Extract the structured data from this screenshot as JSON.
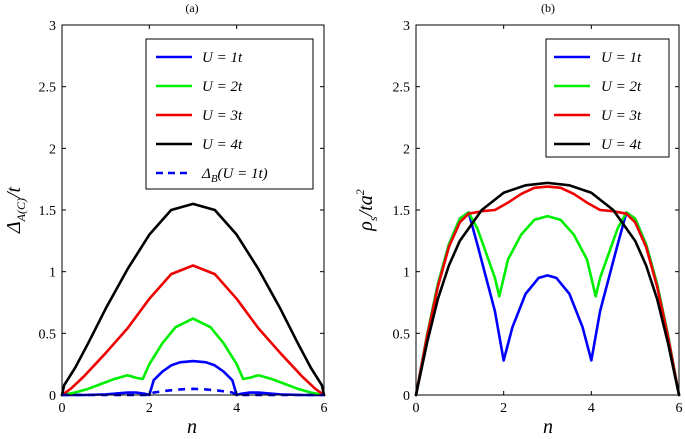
{
  "figure": {
    "panels": [
      "(a)",
      "(b)"
    ]
  },
  "chart_data": [
    {
      "type": "line",
      "panel_label": "(a)",
      "title": "",
      "xlabel": "n",
      "ylabel": "Δ_A(C)/t",
      "xlim": [
        0,
        6
      ],
      "ylim": [
        0,
        3
      ],
      "xticks": [
        0,
        2,
        4,
        6
      ],
      "xtick_labels": [
        "0",
        "2",
        "4",
        "6"
      ],
      "yticks": [
        0,
        0.5,
        1,
        1.5,
        2,
        2.5,
        3
      ],
      "ytick_labels": [
        "0",
        "0.5",
        "1",
        "1.5",
        "2",
        "2.5",
        "3"
      ],
      "legend_position": "top-right",
      "series": [
        {
          "name": "U = 1t",
          "color": "#0000ff",
          "dash": "solid",
          "x": [
            0,
            0.5,
            1,
            1.5,
            1.7,
            1.9,
            2.0,
            2.1,
            2.3,
            2.5,
            2.7,
            3.0,
            3.3,
            3.5,
            3.7,
            3.9,
            4.0,
            4.1,
            4.3,
            4.5,
            5,
            5.5,
            6
          ],
          "y": [
            0,
            0,
            0.005,
            0.02,
            0.02,
            0.01,
            0.0,
            0.12,
            0.19,
            0.24,
            0.265,
            0.275,
            0.265,
            0.24,
            0.19,
            0.12,
            0.0,
            0.01,
            0.02,
            0.02,
            0.005,
            0,
            0
          ]
        },
        {
          "name": "U = 2t",
          "color": "#00ee00",
          "dash": "solid",
          "x": [
            0,
            0.3,
            0.6,
            0.9,
            1.2,
            1.5,
            1.7,
            1.85,
            2.0,
            2.3,
            2.6,
            3.0,
            3.4,
            3.7,
            4.0,
            4.15,
            4.3,
            4.5,
            4.8,
            5.1,
            5.4,
            5.7,
            6
          ],
          "y": [
            0,
            0.02,
            0.05,
            0.09,
            0.13,
            0.16,
            0.14,
            0.13,
            0.25,
            0.42,
            0.55,
            0.62,
            0.55,
            0.42,
            0.25,
            0.13,
            0.14,
            0.16,
            0.13,
            0.09,
            0.05,
            0.02,
            0
          ]
        },
        {
          "name": "U = 3t",
          "color": "#ee0000",
          "dash": "solid",
          "x": [
            0,
            0.2,
            0.5,
            1.0,
            1.5,
            2.0,
            2.5,
            3.0,
            3.5,
            4.0,
            4.5,
            5.0,
            5.5,
            5.8,
            6
          ],
          "y": [
            0,
            0.05,
            0.15,
            0.34,
            0.54,
            0.78,
            0.98,
            1.05,
            0.98,
            0.78,
            0.54,
            0.34,
            0.15,
            0.05,
            0
          ]
        },
        {
          "name": "U = 4t",
          "color": "#000000",
          "dash": "solid",
          "x": [
            0,
            0.05,
            0.3,
            0.6,
            1.0,
            1.5,
            2.0,
            2.5,
            3.0,
            3.5,
            4.0,
            4.5,
            5.0,
            5.4,
            5.7,
            5.95,
            6
          ],
          "y": [
            0,
            0.08,
            0.22,
            0.42,
            0.7,
            1.02,
            1.3,
            1.5,
            1.55,
            1.5,
            1.3,
            1.02,
            0.7,
            0.42,
            0.22,
            0.08,
            0
          ]
        },
        {
          "name": "Δ_B(U = 1t)",
          "color": "#0000ff",
          "dash": "dashed",
          "x": [
            0,
            1.9,
            2.0,
            2.1,
            2.4,
            2.7,
            3.0,
            3.3,
            3.6,
            3.9,
            4.0,
            4.1,
            6
          ],
          "y": [
            0,
            0,
            0.0,
            0.02,
            0.035,
            0.045,
            0.05,
            0.045,
            0.035,
            0.02,
            0.0,
            0,
            0
          ]
        }
      ]
    },
    {
      "type": "line",
      "panel_label": "(b)",
      "title": "",
      "xlabel": "n",
      "ylabel": "ρ_s/ta²",
      "xlim": [
        0,
        6
      ],
      "ylim": [
        0,
        3
      ],
      "xticks": [
        0,
        2,
        4,
        6
      ],
      "xtick_labels": [
        "0",
        "2",
        "4",
        "6"
      ],
      "yticks": [
        0,
        0.5,
        1,
        1.5,
        2,
        2.5,
        3
      ],
      "ytick_labels": [
        "0",
        "0.5",
        "1",
        "1.5",
        "2",
        "2.5",
        "3"
      ],
      "legend_position": "top-right",
      "series": [
        {
          "name": "U = 1t",
          "color": "#0000ff",
          "dash": "solid",
          "x": [
            0,
            0.25,
            0.5,
            0.75,
            1.0,
            1.2,
            1.4,
            1.6,
            1.8,
            2.0,
            2.2,
            2.5,
            2.8,
            3.0,
            3.2,
            3.5,
            3.8,
            4.0,
            4.2,
            4.4,
            4.6,
            4.8,
            5.0,
            5.25,
            5.5,
            5.75,
            6
          ],
          "y": [
            0,
            0.48,
            0.9,
            1.22,
            1.43,
            1.48,
            1.22,
            0.95,
            0.68,
            0.28,
            0.55,
            0.82,
            0.95,
            0.97,
            0.95,
            0.82,
            0.55,
            0.28,
            0.68,
            0.95,
            1.22,
            1.48,
            1.43,
            1.22,
            0.9,
            0.48,
            0
          ]
        },
        {
          "name": "U = 2t",
          "color": "#00ee00",
          "dash": "solid",
          "x": [
            0,
            0.25,
            0.5,
            0.75,
            1.0,
            1.2,
            1.4,
            1.6,
            1.8,
            1.9,
            2.1,
            2.4,
            2.7,
            3.0,
            3.3,
            3.6,
            3.9,
            4.1,
            4.2,
            4.4,
            4.6,
            4.8,
            5.0,
            5.25,
            5.5,
            5.75,
            6
          ],
          "y": [
            0,
            0.48,
            0.9,
            1.22,
            1.43,
            1.48,
            1.35,
            1.15,
            0.95,
            0.8,
            1.1,
            1.3,
            1.42,
            1.45,
            1.42,
            1.3,
            1.1,
            0.8,
            0.95,
            1.15,
            1.35,
            1.48,
            1.43,
            1.22,
            0.9,
            0.48,
            0
          ]
        },
        {
          "name": "U = 3t",
          "color": "#ee0000",
          "dash": "solid",
          "x": [
            0,
            0.25,
            0.5,
            0.75,
            1.0,
            1.2,
            1.5,
            1.8,
            2.1,
            2.4,
            2.7,
            3.0,
            3.3,
            3.6,
            3.9,
            4.2,
            4.5,
            4.8,
            5.0,
            5.25,
            5.5,
            5.75,
            6
          ],
          "y": [
            0,
            0.47,
            0.88,
            1.2,
            1.4,
            1.47,
            1.49,
            1.5,
            1.56,
            1.63,
            1.68,
            1.69,
            1.68,
            1.63,
            1.56,
            1.5,
            1.49,
            1.47,
            1.4,
            1.2,
            0.88,
            0.47,
            0
          ]
        },
        {
          "name": "U = 4t",
          "color": "#000000",
          "dash": "solid",
          "x": [
            0,
            0.25,
            0.5,
            0.75,
            1.0,
            1.5,
            2.0,
            2.5,
            3.0,
            3.5,
            4.0,
            4.5,
            5.0,
            5.25,
            5.5,
            5.75,
            6
          ],
          "y": [
            0,
            0.42,
            0.78,
            1.05,
            1.25,
            1.5,
            1.64,
            1.7,
            1.72,
            1.7,
            1.64,
            1.5,
            1.25,
            1.05,
            0.78,
            0.42,
            0
          ]
        }
      ]
    }
  ]
}
